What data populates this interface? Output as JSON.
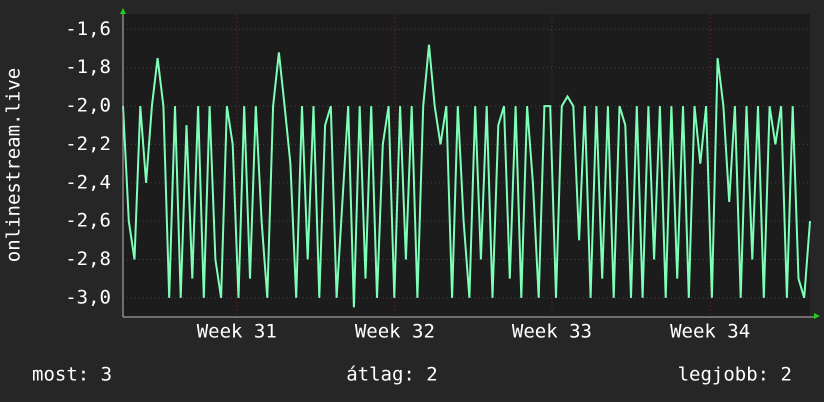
{
  "chart_data": {
    "type": "line",
    "y_label": "onlinestream.live",
    "footer": [
      "most: 3",
      "átlag: 2",
      "legjobb: 2"
    ],
    "series": [
      {
        "name": "onlinestream.live",
        "color": "#7dffb8",
        "values": [
          -2.0,
          -2.6,
          -2.8,
          -2.0,
          -2.4,
          -2.0,
          -1.75,
          -2.0,
          -3.0,
          -2.0,
          -3.0,
          -2.1,
          -2.9,
          -2.0,
          -3.0,
          -2.0,
          -2.8,
          -3.0,
          -2.0,
          -2.2,
          -3.0,
          -2.0,
          -2.9,
          -2.0,
          -2.6,
          -3.0,
          -2.0,
          -1.72,
          -2.0,
          -2.3,
          -3.0,
          -2.0,
          -2.8,
          -2.0,
          -3.0,
          -2.1,
          -2.0,
          -3.0,
          -2.5,
          -2.0,
          -3.05,
          -2.0,
          -2.9,
          -2.0,
          -3.0,
          -2.2,
          -2.0,
          -3.0,
          -2.0,
          -2.8,
          -2.0,
          -3.0,
          -2.0,
          -1.68,
          -2.0,
          -2.2,
          -2.0,
          -3.0,
          -2.0,
          -2.6,
          -3.0,
          -2.0,
          -2.8,
          -2.0,
          -3.0,
          -2.1,
          -2.0,
          -2.9,
          -2.0,
          -3.0,
          -2.0,
          -2.4,
          -3.0,
          -2.0,
          -2.0,
          -3.0,
          -2.0,
          -1.95,
          -2.0,
          -2.7,
          -2.0,
          -3.0,
          -2.0,
          -2.9,
          -2.0,
          -3.0,
          -2.0,
          -2.1,
          -3.0,
          -2.0,
          -3.0,
          -2.0,
          -2.8,
          -2.0,
          -3.0,
          -2.0,
          -2.9,
          -2.0,
          -3.0,
          -2.0,
          -2.3,
          -2.0,
          -3.0,
          -1.75,
          -2.0,
          -2.5,
          -2.0,
          -3.0,
          -2.0,
          -2.8,
          -2.0,
          -3.0,
          -2.0,
          -2.2,
          -2.0,
          -3.0,
          -2.0,
          -2.9,
          -3.0,
          -2.6
        ]
      }
    ],
    "xlim": [
      0,
      119
    ],
    "xticks": [
      {
        "value": 19.7,
        "label": "Week 31"
      },
      {
        "value": 47.1,
        "label": "Week 32"
      },
      {
        "value": 74.3,
        "label": "Week 33"
      },
      {
        "value": 101.7,
        "label": "Week 34"
      }
    ],
    "ylim": [
      -3.1,
      -1.52
    ],
    "yticks": [
      {
        "value": -1.6,
        "label": "-1,6"
      },
      {
        "value": -1.8,
        "label": "-1,8"
      },
      {
        "value": -2.0,
        "label": "-2,0"
      },
      {
        "value": -2.2,
        "label": "-2,2"
      },
      {
        "value": -2.4,
        "label": "-2,4"
      },
      {
        "value": -2.6,
        "label": "-2,6"
      },
      {
        "value": -2.8,
        "label": "-2,8"
      },
      {
        "value": -3.0,
        "label": "-3,0"
      }
    ],
    "grid": true
  }
}
